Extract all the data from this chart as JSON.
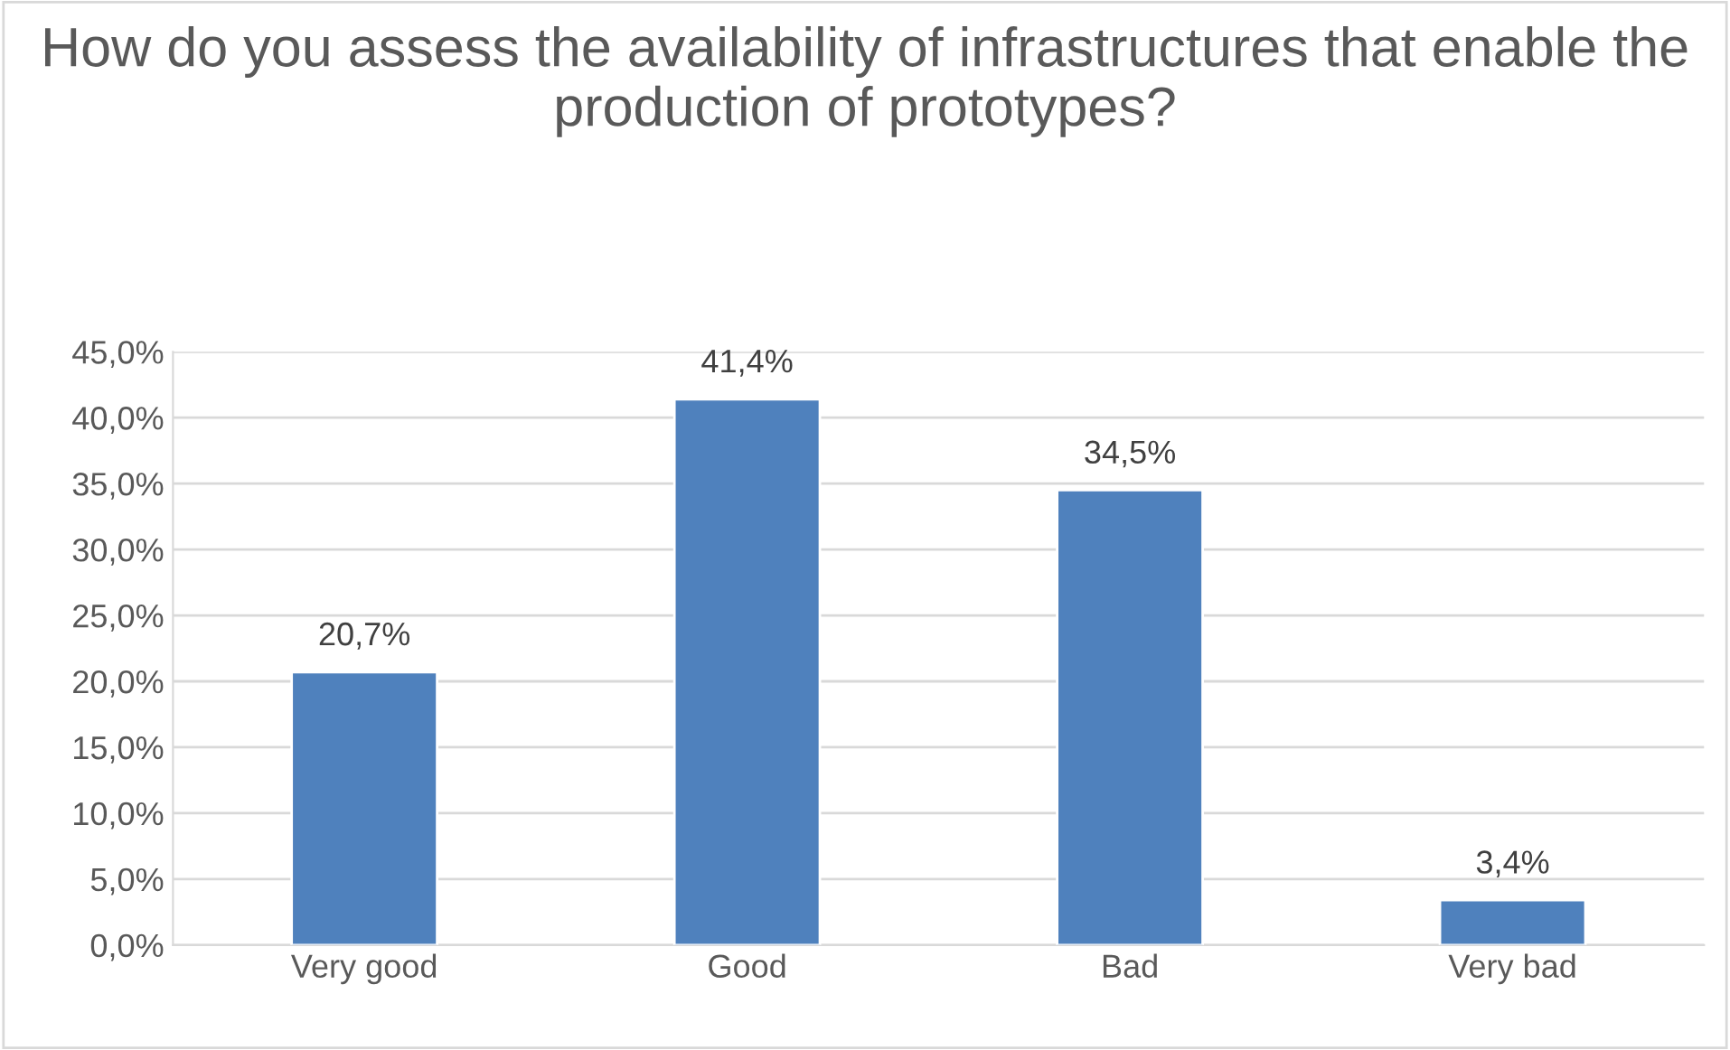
{
  "chart_data": {
    "type": "bar",
    "title": "How do you assess the availability of infrastructures that enable the production of prototypes?",
    "categories": [
      "Very good",
      "Good",
      "Bad",
      "Very bad"
    ],
    "values": [
      20.7,
      41.4,
      34.5,
      3.4
    ],
    "value_labels": [
      "20,7%",
      "41,4%",
      "34,5%",
      "3,4%"
    ],
    "color": "#4f81bd",
    "ylim": [
      0,
      45
    ],
    "yticks": [
      {
        "value": 0,
        "label": "0,0%"
      },
      {
        "value": 5,
        "label": "5,0%"
      },
      {
        "value": 10,
        "label": "10,0%"
      },
      {
        "value": 15,
        "label": "15,0%"
      },
      {
        "value": 20,
        "label": "20,0%"
      },
      {
        "value": 25,
        "label": "25,0%"
      },
      {
        "value": 30,
        "label": "30,0%"
      },
      {
        "value": 35,
        "label": "35,0%"
      },
      {
        "value": 40,
        "label": "40,0%"
      },
      {
        "value": 45,
        "label": "45,0%"
      }
    ],
    "grid": "y",
    "legend": false
  }
}
